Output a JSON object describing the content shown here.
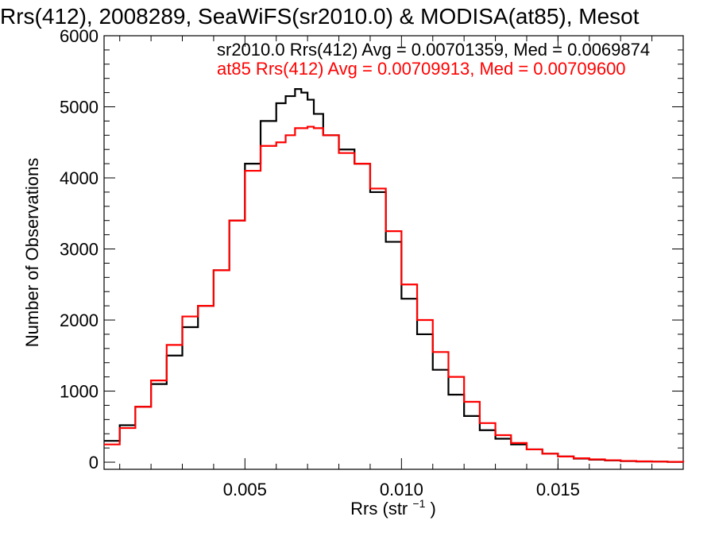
{
  "chart_data": {
    "type": "line",
    "title": "Rrs(412), 2008289, SeaWiFS(sr2010.0) & MODISA(at85), Mesot",
    "xlabel": "Rrs (str",
    "xlabel_exponent": "−1",
    "xlabel_suffix": ")",
    "ylabel": "Number of Observations",
    "xlim": [
      0.0005,
      0.019
    ],
    "ylim": [
      -100,
      6000
    ],
    "xticks": [
      {
        "value": 0.005,
        "label": "0.005"
      },
      {
        "value": 0.01,
        "label": "0.010"
      },
      {
        "value": 0.015,
        "label": "0.015"
      }
    ],
    "yticks": [
      {
        "value": 0,
        "label": "0"
      },
      {
        "value": 1000,
        "label": "1000"
      },
      {
        "value": 2000,
        "label": "2000"
      },
      {
        "value": 3000,
        "label": "3000"
      },
      {
        "value": 4000,
        "label": "4000"
      },
      {
        "value": 5000,
        "label": "5000"
      },
      {
        "value": 6000,
        "label": "6000"
      }
    ],
    "grid": false,
    "legend_position": "top-right",
    "series": [
      {
        "legend": "sr2010.0 Rrs(412) Avg = 0.00701359, Med = 0.0069874",
        "color": "#000000",
        "x": [
          0.0005,
          0.001,
          0.0015,
          0.002,
          0.0025,
          0.003,
          0.0035,
          0.004,
          0.0045,
          0.005,
          0.0055,
          0.006,
          0.0063,
          0.0066,
          0.0068,
          0.007,
          0.0072,
          0.0075,
          0.008,
          0.0085,
          0.009,
          0.0095,
          0.01,
          0.0105,
          0.011,
          0.0115,
          0.012,
          0.0125,
          0.013,
          0.0135,
          0.014,
          0.0145,
          0.015,
          0.0155,
          0.016,
          0.0165,
          0.017,
          0.0175,
          0.018,
          0.0185,
          0.019
        ],
        "y": [
          300,
          520,
          780,
          1100,
          1500,
          1900,
          2200,
          2700,
          3400,
          4200,
          4800,
          5050,
          5150,
          5250,
          5200,
          5100,
          4900,
          4600,
          4400,
          4200,
          3800,
          3100,
          2300,
          1800,
          1300,
          950,
          650,
          450,
          330,
          250,
          180,
          120,
          80,
          50,
          35,
          25,
          15,
          10,
          8,
          5,
          0
        ]
      },
      {
        "legend": "at85 Rrs(412) Avg = 0.00709913, Med = 0.00709600",
        "color": "#ff0000",
        "x": [
          0.0005,
          0.001,
          0.0015,
          0.002,
          0.0025,
          0.003,
          0.0035,
          0.004,
          0.0045,
          0.005,
          0.0055,
          0.006,
          0.0063,
          0.0066,
          0.0068,
          0.007,
          0.0072,
          0.0075,
          0.008,
          0.0085,
          0.009,
          0.0095,
          0.01,
          0.0105,
          0.011,
          0.0115,
          0.012,
          0.0125,
          0.013,
          0.0135,
          0.014,
          0.0145,
          0.015,
          0.0155,
          0.016,
          0.0165,
          0.017,
          0.0175,
          0.018,
          0.0185,
          0.019
        ],
        "y": [
          250,
          480,
          780,
          1150,
          1650,
          2050,
          2200,
          2700,
          3400,
          4100,
          4450,
          4500,
          4600,
          4700,
          4700,
          4720,
          4700,
          4600,
          4350,
          4200,
          3850,
          3250,
          2500,
          2000,
          1550,
          1200,
          850,
          550,
          380,
          270,
          180,
          120,
          80,
          55,
          40,
          28,
          18,
          12,
          8,
          5,
          0
        ]
      }
    ]
  }
}
